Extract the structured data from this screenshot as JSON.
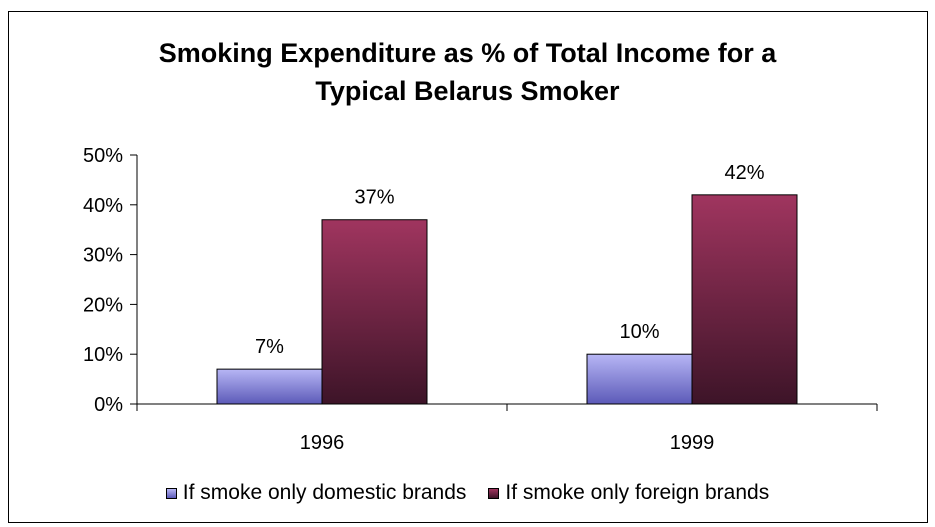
{
  "chart_data": {
    "type": "bar",
    "title_lines": [
      "Smoking Expenditure as % of Total Income for a",
      "Typical Belarus Smoker"
    ],
    "categories": [
      "1996",
      "1999"
    ],
    "series": [
      {
        "name": "If smoke only domestic brands",
        "values": [
          7,
          10
        ],
        "labels": [
          "7%",
          "10%"
        ],
        "color_top": "#b7b6f5",
        "color_bottom": "#5c5ab8"
      },
      {
        "name": "If smoke only foreign brands",
        "values": [
          37,
          42
        ],
        "labels": [
          "37%",
          "42%"
        ],
        "color_top": "#a0355f",
        "color_bottom": "#3d1428"
      }
    ],
    "y_ticks": [
      "0%",
      "10%",
      "20%",
      "30%",
      "40%",
      "50%"
    ],
    "ylim": [
      0,
      50
    ],
    "grid": false,
    "legend_position": "bottom"
  }
}
